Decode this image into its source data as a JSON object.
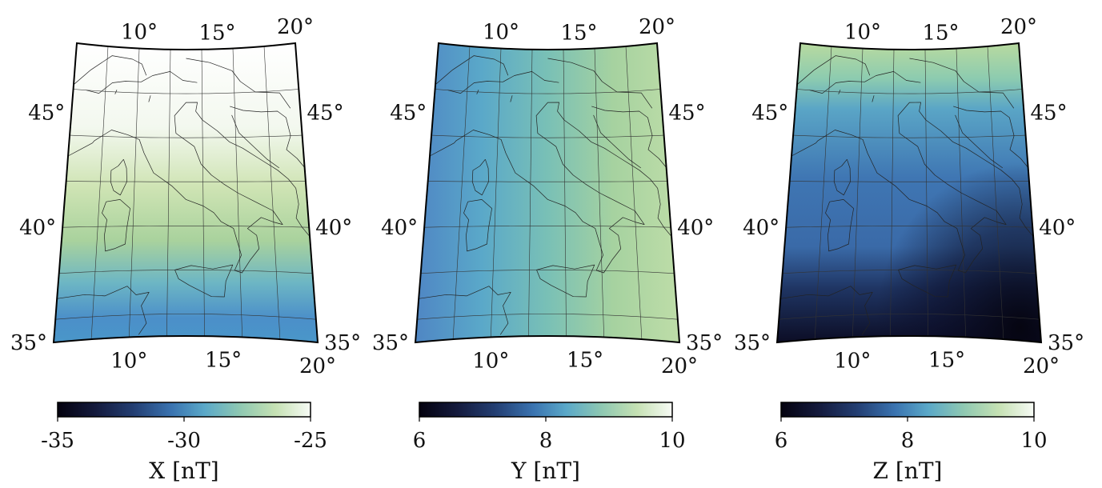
{
  "figure": {
    "lat_ticks": [
      "35°",
      "40°",
      "45°"
    ],
    "lon_ticks": [
      "10°",
      "15°",
      "20°"
    ],
    "panels": [
      {
        "id": "x",
        "colorbar_label": "X [nT]",
        "colorbar_ticks": [
          "-35",
          "-30",
          "-25"
        ],
        "field": "x-component anomaly: highest (lightest) in the north, lowest (blue) in the far south"
      },
      {
        "id": "y",
        "colorbar_label": "Y [nT]",
        "colorbar_ticks": [
          "6",
          "8",
          "10"
        ],
        "field": "y-component anomaly: increases from west (blue) to east (light green)"
      },
      {
        "id": "z",
        "colorbar_label": "Z [nT]",
        "colorbar_ticks": [
          "6",
          "8",
          "10"
        ],
        "field": "z-component anomaly: light green in the north, medium blue in the center, very dark in the southeast"
      }
    ],
    "colormap": [
      "#04020f",
      "#17234a",
      "#356396",
      "#4a93c8",
      "#6eb7be",
      "#a8d19a",
      "#d9ebc9",
      "#f7fbf5"
    ]
  }
}
